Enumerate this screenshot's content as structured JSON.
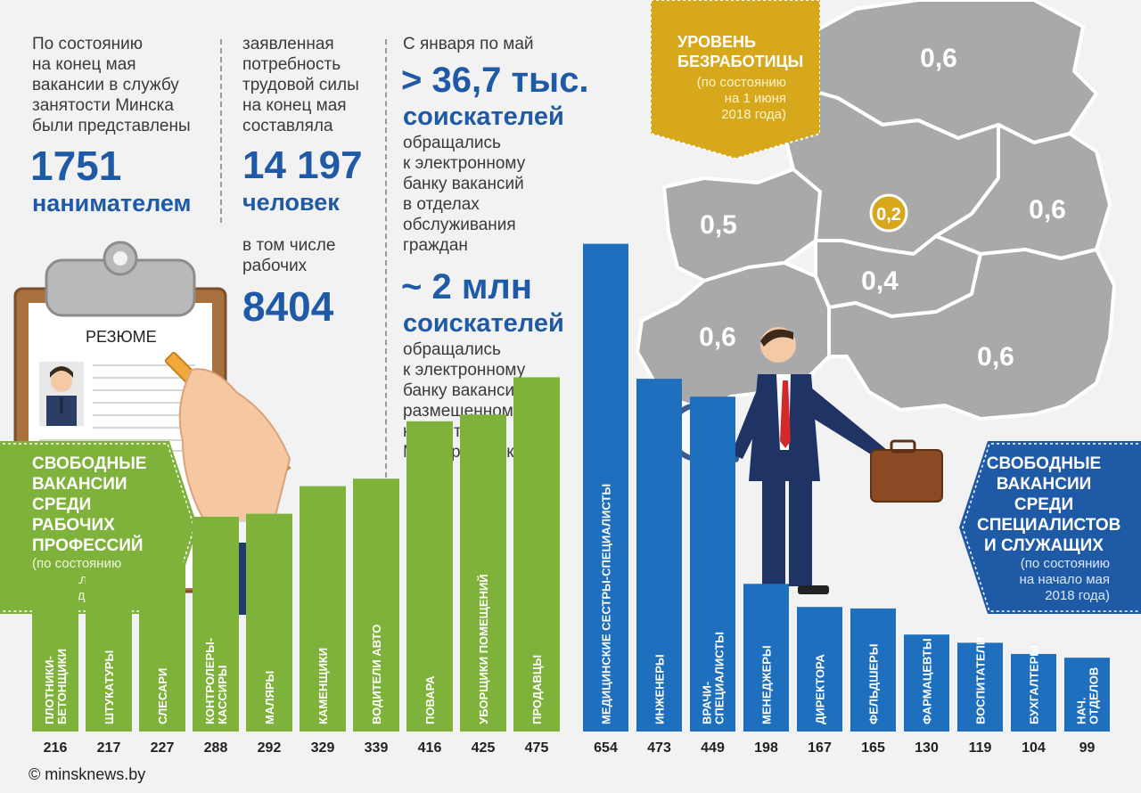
{
  "stats": {
    "col1_text": "По состоянию\nна конец мая\nвакансии в службу\nзанятости Минска\nбыли представлены",
    "col1_number": "1751",
    "col1_unit": "нанимателем",
    "col2_text": "заявленная\nпотребность\nтрудовой силы\nна конец мая\nсоставляла",
    "col2_number": "14 197",
    "col2_unit": "человек",
    "col2_text2": "в том числе\nрабочих",
    "col2_number2": "8404",
    "col3_intro": "С января по май",
    "col3_number1": "> 36,7 тыс.",
    "col3_unit1": "соискателей",
    "col3_text1": "обращались\nк электронному\nбанку вакансий\nв отделах\nобслуживания\nграждан",
    "col3_number2": "~ 2 млн",
    "col3_unit2": "соискателей",
    "col3_text2": "обращались\nк электронному\nбанку вакансий,\nразмещенному\nна сайте\nМингорисполкома"
  },
  "unemployment": {
    "title": "УРОВЕНЬ\nБЕЗРАБОТИЦЫ",
    "subtitle": "(по состоянию\nна 1 июня\n2018 года)",
    "regions": [
      "0,6",
      "0,5",
      "0,2",
      "0,6",
      "0,4",
      "0,6",
      "0,6"
    ]
  },
  "resume_label": "РЕЗЮМЕ",
  "green_ribbon": {
    "title": "СВОБОДНЫЕ\nВАКАНСИИ\nСРЕДИ\nРАБОЧИХ\nПРОФЕССИЙ",
    "subtitle": "(по состоянию\nна начало мая\n2018 года)"
  },
  "blue_ribbon": {
    "title": "СВОБОДНЫЕ\nВАКАНСИИ\nСРЕДИ\nСПЕЦИАЛИСТОВ\nИ СЛУЖАЩИХ",
    "subtitle": "(по состоянию\nна начало мая\n2018 года)"
  },
  "copyright": "© minsknews.by",
  "colors": {
    "green": "#7fb23a",
    "blue": "#1f6fbf",
    "gold": "#d8a81c",
    "map": "#a8a8a8",
    "accent_text": "#1f5aa6"
  },
  "chart_data": [
    {
      "type": "bar",
      "title": "СВОБОДНЫЕ ВАКАНСИИ СРЕДИ РАБОЧИХ ПРОФЕССИЙ",
      "categories": [
        "ПЛОТНИКИ-БЕТОНЩИКИ",
        "ШТУКАТУРЫ",
        "СЛЕСАРИ",
        "КОНТРОЛЕРЫ-КАССИРЫ",
        "МАЛЯРЫ",
        "КАМЕНЩИКИ",
        "ВОДИТЕЛИ АВТО",
        "ПОВАРА",
        "УБОРЩИКИ ПОМЕЩЕНИЙ",
        "ПРОДАВЦЫ"
      ],
      "values": [
        216,
        217,
        227,
        288,
        292,
        329,
        339,
        416,
        425,
        475
      ],
      "color": "#7fb23a"
    },
    {
      "type": "bar",
      "title": "СВОБОДНЫЕ ВАКАНСИИ СРЕДИ СПЕЦИАЛИСТОВ И СЛУЖАЩИХ",
      "categories": [
        "МЕДИЦИНСКИЕ СЕСТРЫ-СПЕЦИАЛИСТЫ",
        "ИНЖЕНЕРЫ",
        "ВРАЧИ-СПЕЦИАЛИСТЫ",
        "МЕНЕДЖЕРЫ",
        "ДИРЕКТОРА",
        "ФЕЛЬДШЕРЫ",
        "ФАРМАЦЕВТЫ",
        "ВОСПИТАТЕЛИ",
        "БУХГАЛТЕРЫ",
        "НАЧ. ОТДЕЛОВ"
      ],
      "values": [
        654,
        473,
        449,
        198,
        167,
        165,
        130,
        119,
        104,
        99
      ],
      "color": "#1f6fbf"
    }
  ]
}
